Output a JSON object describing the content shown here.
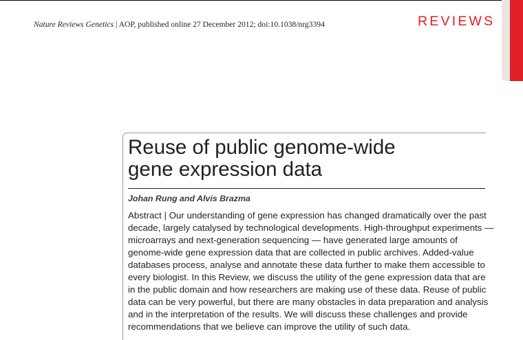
{
  "header": {
    "journal_name": "Nature Reviews Genetics",
    "journal_info": " | AOP, published online 27 December 2012; doi:10.1038/nrg3394",
    "section_label": "REVIEWS",
    "accent_color": "#e01e25"
  },
  "article": {
    "title_lines": [
      "Reuse of public genome-wide",
      "gene expression data"
    ],
    "authors": "Johan Rung and Alvis Brazma",
    "abstract_lines": [
      "Abstract | Our understanding of gene expression has changed dramatically over the past",
      "decade, largely catalysed by technological developments. High-throughput experiments —",
      "microarrays and next-generation sequencing — have generated large amounts of",
      "genome-wide gene expression data that are collected in public archives. Added-value",
      "databases process, analyse and annotate these data further to make them accessible to",
      "every biologist. In this Review, we discuss the utility of the gene expression data that are",
      "in the public domain and how researchers are making use of these data. Reuse of public",
      "data can be very powerful, but there are many obstacles in data preparation and analysis",
      "and in the interpretation of the results. We will discuss these challenges and provide",
      "recommendations that we believe can improve the utility of such data."
    ]
  }
}
